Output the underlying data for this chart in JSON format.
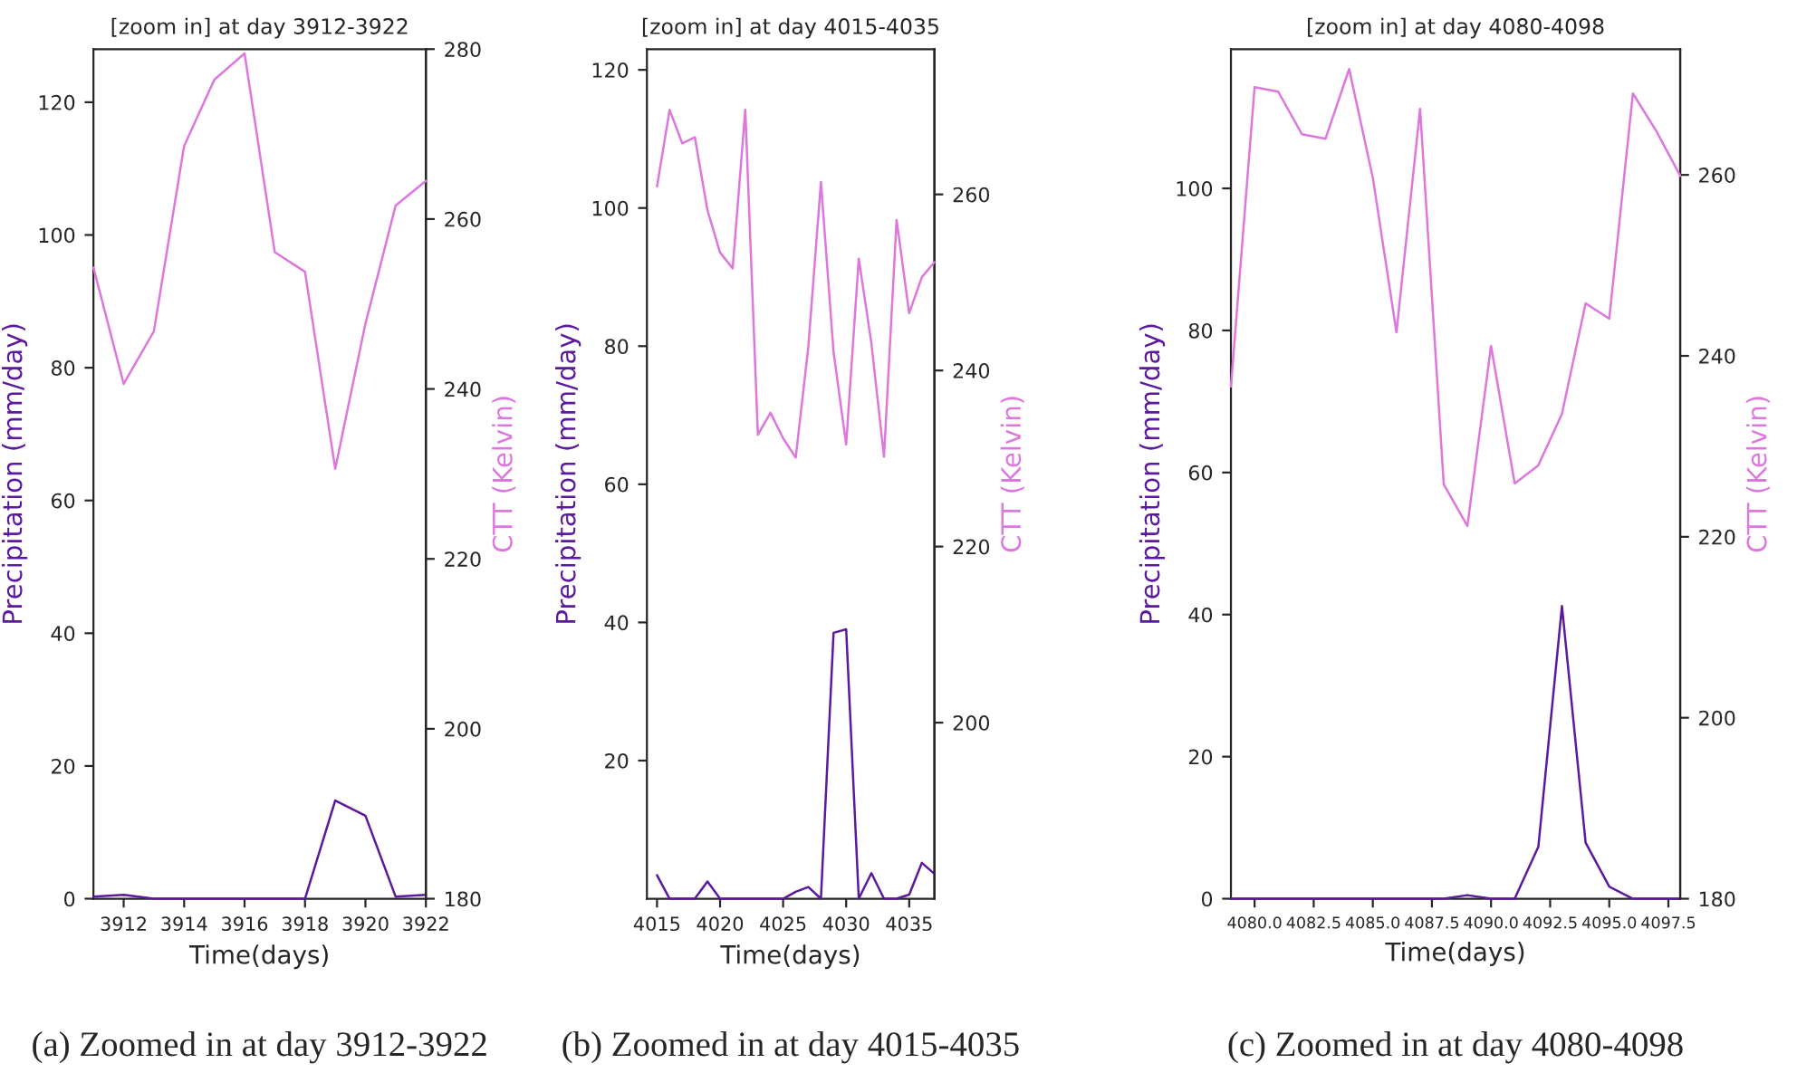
{
  "chart_data": [
    {
      "type": "line",
      "title": "[zoom in] at day 3912-3922",
      "xlabel": "Time(days)",
      "ylabel": "Precipitation (mm/day)",
      "y2label": "CTT (Kelvin)",
      "annotations": [
        "(a) Zoomed in at day 3912-3922"
      ],
      "x": [
        3911,
        3912,
        3913,
        3914,
        3915,
        3916,
        3917,
        3918,
        3919,
        3920,
        3921,
        3922
      ],
      "xlim": [
        3911,
        3922
      ],
      "xticks": [
        3912,
        3914,
        3916,
        3918,
        3920,
        3922
      ],
      "ylim": [
        0,
        128
      ],
      "yticks": [
        0,
        20,
        40,
        60,
        80,
        100,
        120
      ],
      "y2lim": [
        180,
        280
      ],
      "y2ticks": [
        180,
        200,
        220,
        240,
        260,
        280
      ],
      "series": [
        {
          "color": "#5b1a9e",
          "values": [
            0.3,
            0.6,
            0,
            0,
            0,
            0,
            0,
            0,
            14.8,
            12.5,
            0.3,
            0.6
          ]
        },
        {
          "color": "#dd77dd",
          "axis": "y2",
          "values": [
            254.3,
            240.6,
            246.8,
            268.6,
            276.4,
            279.5,
            256.1,
            253.8,
            230.6,
            247.7,
            261.6,
            264.5
          ]
        }
      ]
    },
    {
      "type": "line",
      "title": "[zoom in] at day 4015-4035",
      "xlabel": "Time(days)",
      "ylabel": "Precipitation (mm/day)",
      "y2label": "CTT (Kelvin)",
      "annotations": [
        "(b) Zoomed in at day 4015-4035"
      ],
      "x": [
        4015,
        4016,
        4017,
        4018,
        4019,
        4020,
        4021,
        4022,
        4023,
        4024,
        4025,
        4026,
        4027,
        4028,
        4029,
        4030,
        4031,
        4032,
        4033,
        4034,
        4035,
        4036,
        4037
      ],
      "xlim": [
        4014.2,
        4037
      ],
      "xticks": [
        4015,
        4020,
        4025,
        4030,
        4035
      ],
      "ylim": [
        0,
        123
      ],
      "yticks": [
        20,
        40,
        60,
        80,
        100,
        120
      ],
      "y2lim": [
        180,
        276.5
      ],
      "y2ticks": [
        200,
        220,
        240,
        260
      ],
      "series": [
        {
          "color": "#5b1a9e",
          "values": [
            3.4,
            0,
            0,
            0,
            2.5,
            0,
            0,
            0,
            0,
            0,
            0,
            1.0,
            1.7,
            0,
            38.5,
            39.0,
            0,
            3.7,
            0,
            0,
            0.6,
            5.2,
            3.6
          ]
        },
        {
          "color": "#dd77dd",
          "axis": "y2",
          "values": [
            260.9,
            269.6,
            265.8,
            266.5,
            258.2,
            253.4,
            251.6,
            269.6,
            232.7,
            235.2,
            232.3,
            230.1,
            242.7,
            261.4,
            242.1,
            231.6,
            252.7,
            243.1,
            230.2,
            257.1,
            246.5,
            250.6,
            252.3
          ]
        }
      ]
    },
    {
      "type": "line",
      "title": "[zoom in] at day 4080-4098",
      "xlabel": "Time(days)",
      "ylabel": "Precipitation (mm/day)",
      "y2label": "CTT (Kelvin)",
      "annotations": [
        "(c) Zoomed in at day 4080-4098"
      ],
      "x": [
        4079,
        4080,
        4081,
        4082,
        4083,
        4084,
        4085,
        4086,
        4087,
        4088,
        4089,
        4090,
        4091,
        4092,
        4093,
        4094,
        4095,
        4096,
        4097,
        4098
      ],
      "xlim": [
        4079,
        4098
      ],
      "xticks": [
        {
          "value": 4080,
          "label": "4080.0"
        },
        {
          "value": 4082.5,
          "label": "4082.5"
        },
        {
          "value": 4085,
          "label": "4085.0"
        },
        {
          "value": 4087.5,
          "label": "4087.5"
        },
        {
          "value": 4090,
          "label": "4090.0"
        },
        {
          "value": 4092.5,
          "label": "4092.5"
        },
        {
          "value": 4095,
          "label": "4095.0"
        },
        {
          "value": 4097.5,
          "label": "4097.5"
        }
      ],
      "ylim": [
        0,
        119.6
      ],
      "yticks": [
        0,
        20,
        40,
        60,
        80,
        100
      ],
      "y2lim": [
        180,
        273.9
      ],
      "y2ticks": [
        180,
        200,
        220,
        240,
        260
      ],
      "series": [
        {
          "color": "#5b1a9e",
          "values": [
            0,
            0,
            0,
            0,
            0,
            0,
            0,
            0,
            0,
            0,
            0.5,
            0,
            0,
            7.3,
            41.2,
            7.9,
            1.7,
            0,
            0,
            0
          ]
        },
        {
          "color": "#dd77dd",
          "axis": "y2",
          "values": [
            236.6,
            269.7,
            269.2,
            264.5,
            264.0,
            271.7,
            259.7,
            242.6,
            267.3,
            225.8,
            221.2,
            241.1,
            225.9,
            227.9,
            233.6,
            245.8,
            244.1,
            269.0,
            264.8,
            259.9
          ]
        }
      ]
    }
  ]
}
